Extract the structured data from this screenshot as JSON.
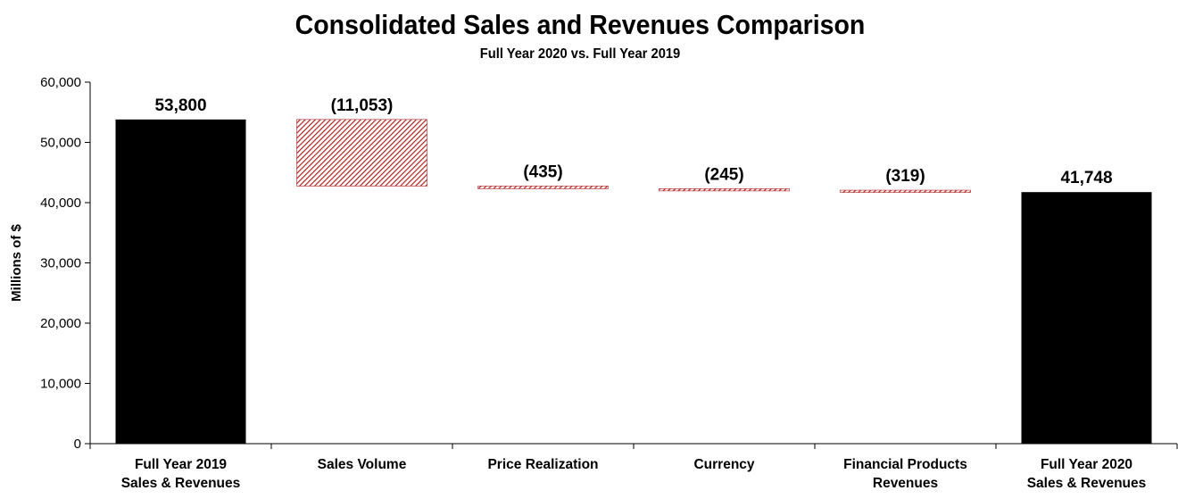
{
  "chart_data": {
    "type": "waterfall",
    "title": "Consolidated Sales and Revenues Comparison",
    "subtitle": "Full Year 2020 vs. Full Year 2019",
    "ylabel": "Millions of $",
    "ylim": [
      0,
      60000
    ],
    "yticks": [
      0,
      10000,
      20000,
      30000,
      40000,
      50000,
      60000
    ],
    "ytick_labels": [
      "0",
      "10,000",
      "20,000",
      "30,000",
      "40,000",
      "50,000",
      "60,000"
    ],
    "grid": false,
    "categories": [
      [
        "Full Year 2019",
        "Sales & Revenues"
      ],
      [
        "Sales Volume"
      ],
      [
        "Price Realization"
      ],
      [
        "Currency"
      ],
      [
        "Financial Products",
        "Revenues"
      ],
      [
        "Full Year 2020",
        "Sales & Revenues"
      ]
    ],
    "bars": [
      {
        "kind": "total",
        "value": 53800,
        "label": "53,800"
      },
      {
        "kind": "delta",
        "value": -11053,
        "label": "(11,053)"
      },
      {
        "kind": "delta",
        "value": -435,
        "label": "(435)"
      },
      {
        "kind": "delta",
        "value": -245,
        "label": "(245)"
      },
      {
        "kind": "delta",
        "value": -319,
        "label": "(319)"
      },
      {
        "kind": "total",
        "value": 41748,
        "label": "41,748"
      }
    ],
    "colors": {
      "total": "#000000",
      "delta": "#b22222",
      "axis": "#000000"
    }
  }
}
